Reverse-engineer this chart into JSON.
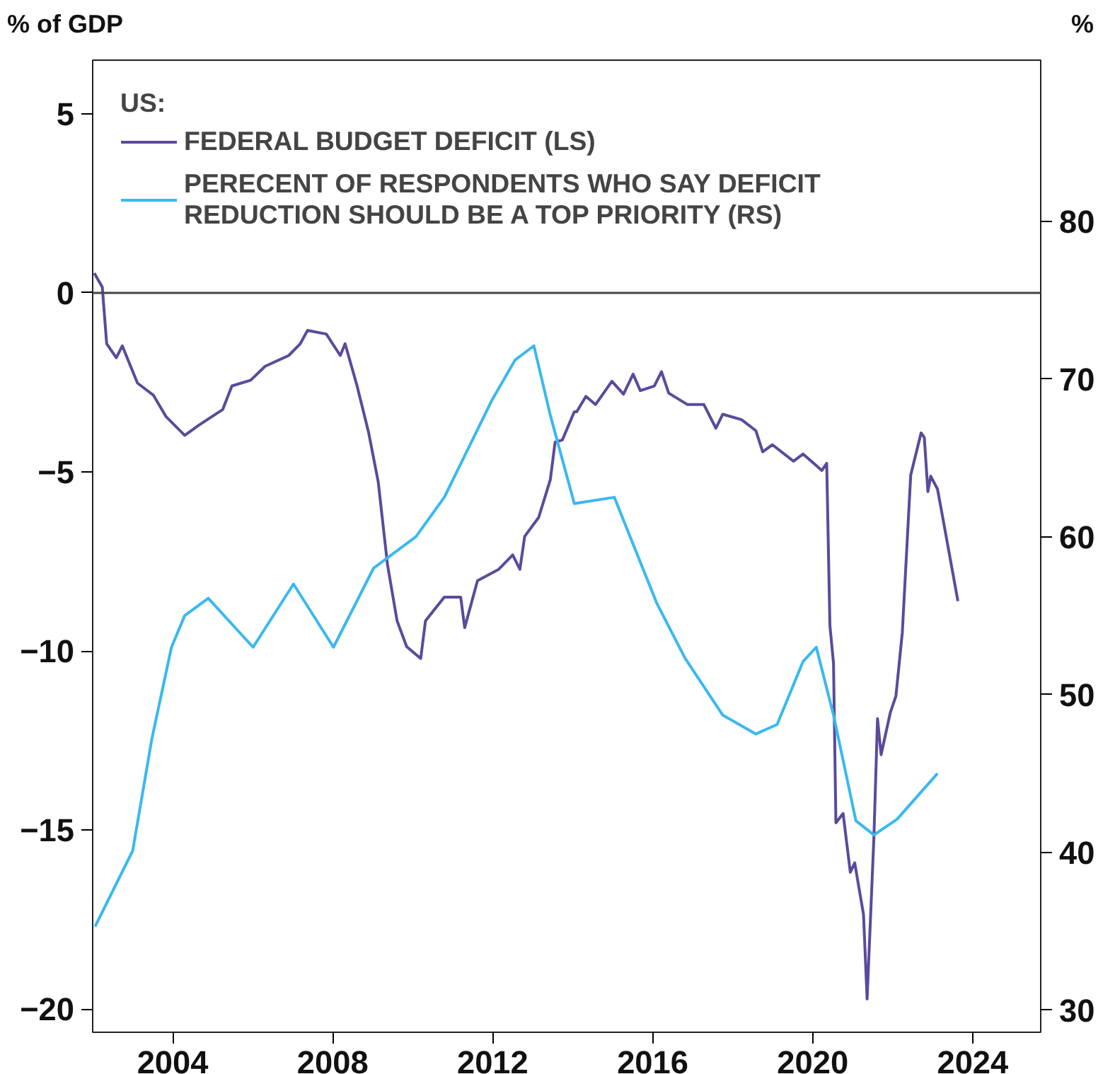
{
  "chart_data": {
    "type": "line",
    "ylabel": "% of GDP",
    "y2label": "%",
    "legend_title": "US:",
    "legend": "top left",
    "grid": false,
    "marker": "none",
    "line_style": "solid",
    "xlim": [
      2002,
      2025.7
    ],
    "xticks": [
      2004,
      2008,
      2012,
      2016,
      2020,
      2024
    ],
    "ylim": [
      -20.65,
      6.5
    ],
    "yticks": [
      -20,
      -15,
      -10,
      -5,
      0,
      5
    ],
    "y2lim": [
      28.6,
      90.2
    ],
    "y2ticks": [
      30,
      40,
      50,
      60,
      70,
      80
    ],
    "ref_lines": [
      {
        "axis": "y",
        "value": 0,
        "color": "#444444"
      }
    ],
    "series": [
      {
        "name": "FEDERAL BUDGET DEFICIT (LS)",
        "color": "#5b4a9b",
        "x": [
          2002.04,
          2002.24,
          2002.35,
          2002.59,
          2002.74,
          2003.12,
          2003.52,
          2003.83,
          2004.3,
          2004.65,
          2005.25,
          2005.48,
          2005.95,
          2006.31,
          2006.9,
          2007.19,
          2007.37,
          2007.84,
          2008.19,
          2008.31,
          2008.61,
          2008.9,
          2009.14,
          2009.37,
          2009.61,
          2009.85,
          2010.2,
          2010.32,
          2010.79,
          2011.2,
          2011.3,
          2011.62,
          2012.15,
          2012.5,
          2012.68,
          2012.8,
          2013.15,
          2013.44,
          2013.56,
          2013.74,
          2014.04,
          2014.1,
          2014.33,
          2014.57,
          2014.98,
          2015.27,
          2015.51,
          2015.69,
          2016.04,
          2016.22,
          2016.4,
          2016.87,
          2017.28,
          2017.58,
          2017.75,
          2018.22,
          2018.58,
          2018.75,
          2018.99,
          2019.52,
          2019.76,
          2020.23,
          2020.35,
          2020.43,
          2020.52,
          2020.58,
          2020.76,
          2020.94,
          2021.05,
          2021.27,
          2021.36,
          2021.53,
          2021.62,
          2021.71,
          2021.94,
          2022.08,
          2022.24,
          2022.45,
          2022.71,
          2022.79,
          2022.88,
          2022.95,
          2023.12,
          2023.24,
          2023.63
        ],
        "values": [
          0.55,
          0.16,
          -1.42,
          -1.81,
          -1.48,
          -2.52,
          -2.86,
          -3.45,
          -3.98,
          -3.7,
          -3.26,
          -2.6,
          -2.44,
          -2.05,
          -1.75,
          -1.42,
          -1.05,
          -1.15,
          -1.75,
          -1.42,
          -2.6,
          -3.91,
          -5.29,
          -7.59,
          -9.16,
          -9.88,
          -10.21,
          -9.16,
          -8.5,
          -8.5,
          -9.35,
          -8.04,
          -7.72,
          -7.32,
          -7.72,
          -6.8,
          -6.27,
          -5.22,
          -4.17,
          -4.11,
          -3.32,
          -3.32,
          -2.89,
          -3.12,
          -2.47,
          -2.83,
          -2.27,
          -2.73,
          -2.6,
          -2.2,
          -2.8,
          -3.12,
          -3.12,
          -3.78,
          -3.39,
          -3.54,
          -3.85,
          -4.44,
          -4.24,
          -4.7,
          -4.5,
          -4.96,
          -4.76,
          -9.29,
          -10.34,
          -14.8,
          -14.54,
          -16.18,
          -15.92,
          -17.36,
          -19.72,
          -15.2,
          -11.89,
          -12.9,
          -11.72,
          -11.26,
          -9.49,
          -5.09,
          -3.91,
          -4.04,
          -5.55,
          -5.12,
          -5.48,
          -6.21,
          -8.61
        ]
      },
      {
        "name": "PERECENT OF RESPONDENTS WHO SAY DEFICIT REDUCTION SHOULD BE A TOP PRIORITY (RS)",
        "color": "#3ab8f0",
        "axis": "y2",
        "x": [
          2002.06,
          2003.0,
          2003.48,
          2003.97,
          2004.3,
          2004.89,
          2006.01,
          2007.02,
          2008.02,
          2009.02,
          2010.08,
          2010.79,
          2011.97,
          2012.56,
          2013.03,
          2013.44,
          2014.04,
          2015.04,
          2016.1,
          2016.81,
          2017.75,
          2018.58,
          2019.11,
          2019.76,
          2020.09,
          2020.52,
          2021.08,
          2021.53,
          2022.11,
          2023.12
        ],
        "values": [
          35.3,
          40.1,
          47.2,
          53.0,
          55.0,
          56.1,
          53.0,
          57.0,
          53.0,
          58.0,
          60.0,
          62.5,
          68.6,
          71.2,
          72.1,
          67.7,
          62.1,
          62.5,
          55.8,
          52.3,
          48.7,
          47.5,
          48.1,
          52.1,
          53.0,
          48.7,
          42.0,
          41.1,
          42.1,
          45.0
        ]
      }
    ]
  }
}
